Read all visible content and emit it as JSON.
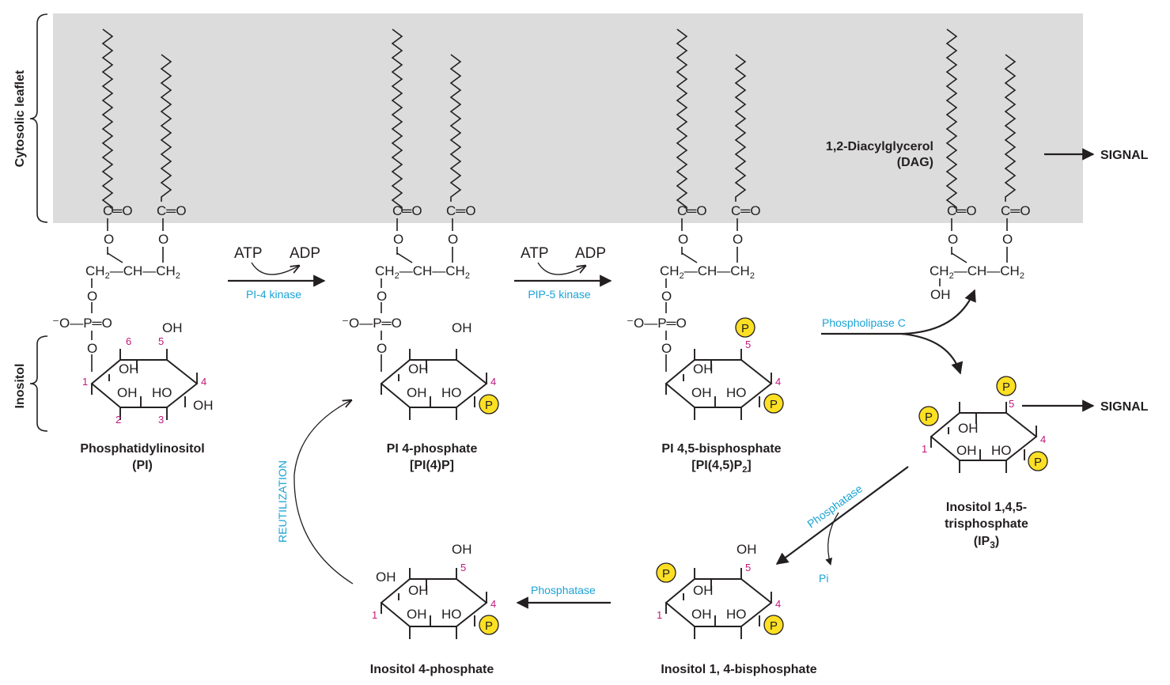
{
  "colors": {
    "membrane": "#dcdcdc",
    "enzyme_text": "#1aa3d6",
    "carbon_number": "#c2187a",
    "phosphate_fill": "#fde024"
  },
  "regions": {
    "cytosolic_leaflet": "Cytosolic leaflet",
    "inositol": "Inositol"
  },
  "atoms": {
    "carbonyl": "C═O",
    "ester_o": "O",
    "ch2": "CH",
    "ch": "CH",
    "sub2": "2",
    "o": "O",
    "o_minus": "⁻O",
    "p": "P",
    "oh": "OH",
    "ho": "HO",
    "phosphate": "P"
  },
  "compounds": {
    "pi": {
      "name": "Phosphatidylinositol",
      "abbr": "(PI)"
    },
    "pi4p": {
      "name": "PI 4-phosphate",
      "abbr": "[PI(4)P]"
    },
    "pip2": {
      "name": "PI 4,5-bisphosphate",
      "abbr_main": "[PI(4,5)P",
      "abbr_sub": "2",
      "abbr_end": "]"
    },
    "dag": {
      "name": "1,2-Diacylglycerol",
      "abbr": "(DAG)"
    },
    "ip3": {
      "line1": "Inositol 1,4,5-",
      "line2": "trisphosphate",
      "line3_main": "(IP",
      "line3_sub": "3",
      "line3_end": ")"
    },
    "ip2": {
      "name": "Inositol 1, 4-bisphosphate"
    },
    "ip1": {
      "name": "Inositol 4-phosphate"
    }
  },
  "reactions": {
    "step1": {
      "atp": "ATP",
      "adp": "ADP",
      "enzyme": "PI-4 kinase"
    },
    "step2": {
      "atp": "ATP",
      "adp": "ADP",
      "enzyme": "PIP-5 kinase"
    },
    "plc": {
      "enzyme": "Phospholipase C"
    },
    "ip3_phosphatase": {
      "enzyme": "Phosphatase",
      "product": "Pi"
    },
    "ip2_phosphatase": {
      "enzyme": "Phosphatase"
    },
    "reutilization": "REUTILIZATION"
  },
  "signals": {
    "dag_signal": "SIGNAL",
    "ip3_signal": "SIGNAL"
  },
  "carbon_numbers": {
    "c1": "1",
    "c2": "2",
    "c3": "3",
    "c4": "4",
    "c5": "5",
    "c6": "6"
  }
}
